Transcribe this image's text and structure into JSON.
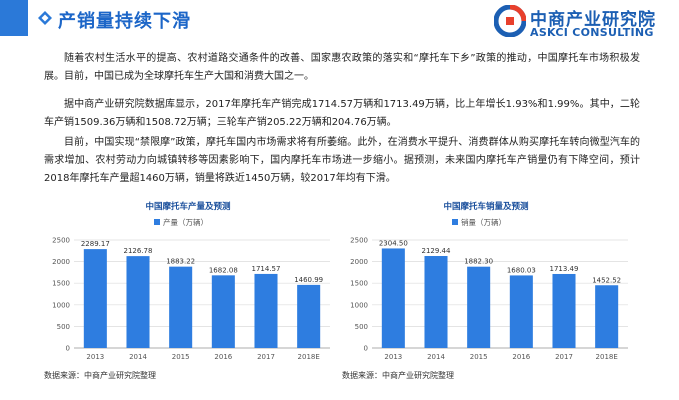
{
  "header": {
    "title": "产销量持续下滑",
    "logo_cn": "中商产业研究院",
    "logo_en": "ASKCI CONSULTING"
  },
  "paragraphs": [
    "随着农村生活水平的提高、农村道路交通条件的改善、国家惠农政策的落实和“摩托车下乡”政策的推动，中国摩托车市场积极发展。目前，中国已成为全球摩托车生产大国和消费大国之一。",
    "据中商产业研究院数据库显示，2017年摩托车产销完成1714.57万辆和1713.49万辆，比上年增长1.93%和1.99%。其中，二轮车产销1509.36万辆和1508.72万辆；三轮车产销205.22万辆和204.76万辆。",
    "目前，中国实现“禁限摩”政策，摩托车国内市场需求将有所萎缩。此外，在消费水平提升、消费群体从购买摩托车转向微型汽车的需求增加、农村劳动力向城镇转移等因素影响下，国内摩托车市场进一步缩小。据预测，未来国内摩托车产销量仍有下降空间，预计2018年摩托车产量超1460万辆，销量将跌近1450万辆，较2017年均有下滑。"
  ],
  "chart_data": [
    {
      "type": "bar",
      "title": "中国摩托车产量及预测",
      "categories": [
        "2013",
        "2014",
        "2015",
        "2016",
        "2017",
        "2018E"
      ],
      "series": [
        {
          "name": "产量（万辆）",
          "values": [
            2289.17,
            2126.78,
            1883.22,
            1682.08,
            1714.57,
            1460.99
          ],
          "color": "#2e7de0"
        }
      ],
      "ylim": [
        0,
        2500
      ],
      "yticks": [
        "0",
        "500",
        "1000",
        "1500",
        "2000",
        "2500"
      ],
      "grid": true,
      "legend": "top"
    },
    {
      "type": "bar",
      "title": "中国摩托车销量及预测",
      "categories": [
        "2013",
        "2014",
        "2015",
        "2016",
        "2017",
        "2018E"
      ],
      "series": [
        {
          "name": "销量（万辆）",
          "values": [
            2304.5,
            2129.44,
            1882.3,
            1680.03,
            1713.49,
            1452.52
          ],
          "color": "#2e7de0"
        }
      ],
      "ylim": [
        0,
        2500
      ],
      "yticks": [
        "0",
        "500",
        "1000",
        "1500",
        "2000",
        "2500"
      ],
      "grid": true,
      "legend": "top"
    }
  ],
  "sources": [
    "数据来源：中商产业研究院整理",
    "数据来源：中商产业研究院整理"
  ]
}
